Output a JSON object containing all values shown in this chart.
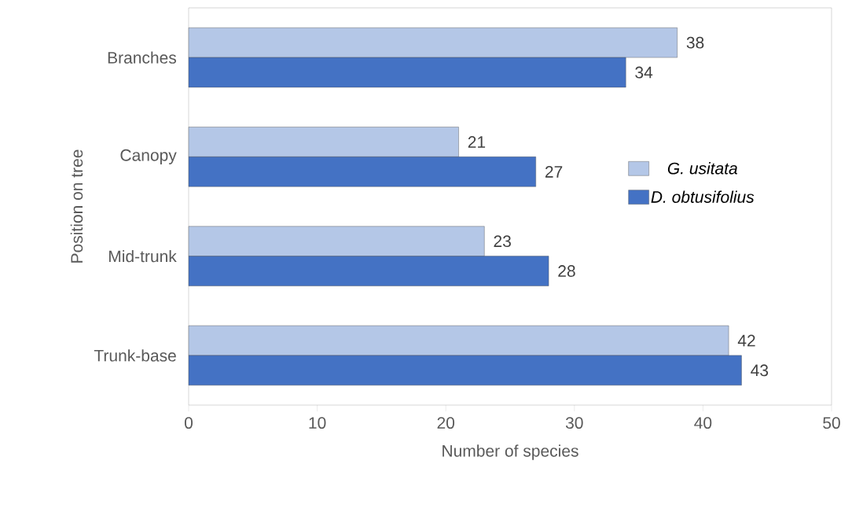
{
  "chart_data": {
    "type": "bar",
    "orientation": "horizontal",
    "xlabel": "Number of species",
    "ylabel": "Position on tree",
    "categories": [
      "Branches",
      "Canopy",
      "Mid-trunk",
      "Trunk-base"
    ],
    "series": [
      {
        "name": "G. usitata",
        "color": "#b4c7e7",
        "values": [
          38,
          21,
          23,
          42
        ]
      },
      {
        "name": "D. obtusifolius",
        "color": "#4472c4",
        "values": [
          34,
          27,
          28,
          43
        ]
      }
    ],
    "xlim": [
      0,
      50
    ],
    "xticks": [
      0,
      10,
      20,
      30,
      40,
      50
    ],
    "data_labels": true,
    "legend": "right",
    "grid": false
  }
}
